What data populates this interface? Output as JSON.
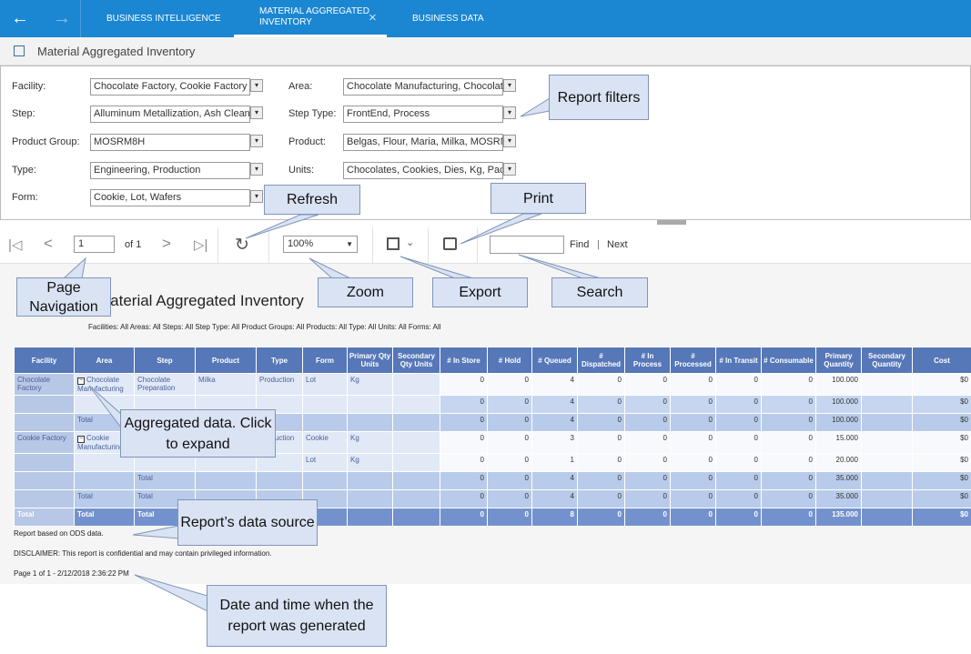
{
  "tabs": [
    "BUSINESS INTELLIGENCE",
    "MATERIAL AGGREGATED\nINVENTORY",
    "BUSINESS DATA"
  ],
  "page_title": "Material Aggregated Inventory",
  "filters": [
    {
      "label": "Facility:",
      "value": "Chocolate Factory, Cookie Factory"
    },
    {
      "label": "Area:",
      "value": "Chocolate Manufacturing, Chocolate"
    },
    {
      "label": "Step:",
      "value": "Alluminum Metallization, Ash Clean"
    },
    {
      "label": "Step Type:",
      "value": "FrontEnd, Process"
    },
    {
      "label": "Product Group:",
      "value": "MOSRM8H"
    },
    {
      "label": "Product:",
      "value": "Belgas, Flour, Maria, Milka, MOSRM"
    },
    {
      "label": "Type:",
      "value": "Engineering, Production"
    },
    {
      "label": "Units:",
      "value": "Chocolates, Cookies, Dies, Kg, Packs"
    },
    {
      "label": "Form:",
      "value": "Cookie, Lot, Wafers"
    }
  ],
  "toolbar": {
    "page": "1",
    "of": "of 1",
    "zoom": "100%",
    "find": "Find",
    "separator": "|",
    "next": "Next"
  },
  "report": {
    "title": "Material Aggregated Inventory",
    "subtitle": "Facilities: All  Areas: All  Steps: All  Step Type: All  Product Groups: All  Products: All  Type: All  Units: All  Forms: All",
    "table": {
      "headers": [
        "Facility",
        "Area",
        "Step",
        "Product",
        "Type",
        "Form",
        "Primary Qty Units",
        "Secondary Qty Units",
        "# In Store",
        "# Hold",
        "# Queued",
        "# Dispatched",
        "# In Process",
        "# Processed",
        "# In Transit",
        "# Consumable",
        "Primary Quantity",
        "Secondary Quantity",
        "Cost"
      ],
      "rows": [
        [
          "Chocolate Factory",
          "Chocolate Manufacturing",
          "Chocolate Preparation",
          "Milka",
          "Production",
          "Lot",
          "Kg",
          null,
          "0",
          "0",
          "4",
          "0",
          "0",
          "0",
          "0",
          "0",
          "100.000",
          null,
          "$0"
        ],
        [
          null,
          null,
          null,
          null,
          null,
          null,
          null,
          null,
          "0",
          "0",
          "4",
          "0",
          "0",
          "0",
          "0",
          "0",
          "100.000",
          null,
          "$0"
        ],
        [
          null,
          "Total",
          null,
          null,
          null,
          null,
          null,
          null,
          "0",
          "0",
          "4",
          "0",
          "0",
          "0",
          "0",
          "0",
          "100.000",
          null,
          "$0"
        ],
        [
          "Cookie Factory",
          "Cookie Manufacturing",
          null,
          null,
          "Production",
          "Cookie",
          "Kg",
          null,
          "0",
          "0",
          "3",
          "0",
          "0",
          "0",
          "0",
          "0",
          "15.000",
          null,
          "$0"
        ],
        [
          null,
          null,
          null,
          null,
          null,
          "Lot",
          "Kg",
          null,
          "0",
          "0",
          "1",
          "0",
          "0",
          "0",
          "0",
          "0",
          "20.000",
          null,
          "$0"
        ],
        [
          null,
          null,
          "Total",
          null,
          null,
          null,
          null,
          null,
          "0",
          "0",
          "4",
          "0",
          "0",
          "0",
          "0",
          "0",
          "35.000",
          null,
          "$0"
        ],
        [
          null,
          "Total",
          "Total",
          null,
          null,
          null,
          null,
          null,
          "0",
          "0",
          "4",
          "0",
          "0",
          "0",
          "0",
          "0",
          "35.000",
          null,
          "$0"
        ],
        [
          "Total",
          "Total",
          "Total",
          null,
          null,
          null,
          null,
          null,
          "0",
          "0",
          "8",
          "0",
          "0",
          "0",
          "0",
          "0",
          "135.000",
          null,
          "$0"
        ]
      ]
    },
    "source": "Report based on ODS data.",
    "disclaimer": "DISCLAIMER: This report is confidential and may contain privileged information.",
    "generated": "Page 1 of 1 - 2/12/2018 2:36:22 PM"
  },
  "callouts": {
    "filters": "Report filters",
    "refresh": "Refresh",
    "print": "Print",
    "navigation": "Page Navigation",
    "zoom": "Zoom",
    "export": "Export",
    "search": "Search",
    "aggregated": "Aggregated data. Click to expand",
    "source": "Report’s data source",
    "datetime": "Date and time when the report was generated"
  }
}
